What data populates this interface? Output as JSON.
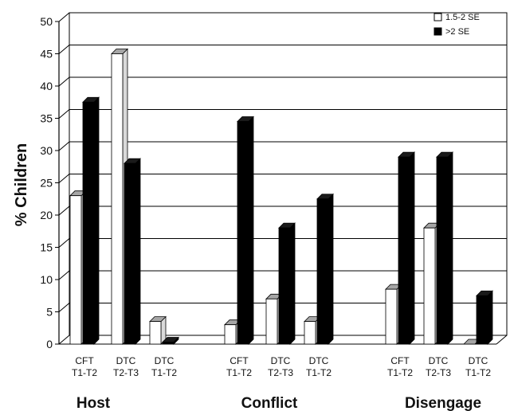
{
  "chart_data": {
    "type": "bar",
    "title": "",
    "xlabel": "",
    "ylabel": "% Children",
    "ylim": [
      0,
      50
    ],
    "yticks": [
      "0",
      "5",
      "10",
      "15",
      "20",
      "25",
      "30",
      "35",
      "40",
      "45",
      "50"
    ],
    "grid": true,
    "legend_position": "top-right",
    "groups": [
      {
        "label": "Host",
        "categories": [
          {
            "line1": "CFT",
            "line2": "T1-T2"
          },
          {
            "line1": "DTC",
            "line2": "T2-T3"
          },
          {
            "line1": "DTC",
            "line2": "T1-T2"
          }
        ]
      },
      {
        "label": "Conflict",
        "categories": [
          {
            "line1": "CFT",
            "line2": "T1-T2"
          },
          {
            "line1": "DTC",
            "line2": "T2-T3"
          },
          {
            "line1": "DTC",
            "line2": "T1-T2"
          }
        ]
      },
      {
        "label": "Disengage",
        "categories": [
          {
            "line1": "CFT",
            "line2": "T1-T2"
          },
          {
            "line1": "DTC",
            "line2": "T2-T3"
          },
          {
            "line1": "DTC",
            "line2": "T1-T2"
          }
        ]
      }
    ],
    "series": [
      {
        "name": "1.5-2 SE",
        "color": "#ffffff",
        "values": [
          23,
          45,
          3.5,
          3,
          7,
          3.5,
          8.5,
          18,
          0
        ]
      },
      {
        "name": ">2 SE",
        "color": "#000000",
        "values": [
          37.5,
          28,
          0.3,
          34.5,
          18,
          22.5,
          29,
          29,
          7.5
        ]
      }
    ]
  }
}
